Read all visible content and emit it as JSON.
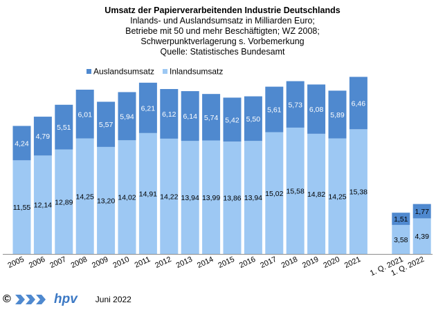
{
  "chart_data": {
    "type": "bar",
    "stacked": true,
    "title": "Umsatz der Papierverarbeitenden Industrie Deutschlands",
    "subtitle_lines": [
      "Inlands- und Auslandsumsatz in Milliarden Euro;",
      "Betriebe mit 50 und mehr Beschäftigten;  WZ 2008;",
      "Schwerpunktverlagerung  s. Vorbemerkung",
      "Quelle: Statistisches Bundesamt"
    ],
    "categories": [
      "2005",
      "2006",
      "2007",
      "2008",
      "2009",
      "2010",
      "2011",
      "2012",
      "2013",
      "2014",
      "2015",
      "2016",
      "2017",
      "2018",
      "2019",
      "2020",
      "2021",
      "1. Q. 2021",
      "1. Q. 2022"
    ],
    "series": [
      {
        "name": "Inlandsumsatz",
        "color": "#9dc8f3",
        "values": [
          11.55,
          12.14,
          12.89,
          14.25,
          13.2,
          14.02,
          14.91,
          14.22,
          13.94,
          13.99,
          13.86,
          13.94,
          15.02,
          15.58,
          14.82,
          14.25,
          15.38,
          3.58,
          4.39
        ],
        "labels": [
          "11,55",
          "12,14",
          "12,89",
          "14,25",
          "13,20",
          "14,02",
          "14,91",
          "14,22",
          "13,94",
          "13,99",
          "13,86",
          "13,94",
          "15,02",
          "15,58",
          "14,82",
          "14,25",
          "15,38",
          "3,58",
          "4,39"
        ]
      },
      {
        "name": "Auslandsumsatz",
        "color": "#4f89cf",
        "values": [
          4.24,
          4.79,
          5.51,
          6.01,
          5.57,
          5.94,
          6.21,
          6.12,
          6.14,
          5.74,
          5.42,
          5.5,
          5.61,
          5.73,
          6.08,
          5.89,
          6.46,
          1.51,
          1.77
        ],
        "labels": [
          "4,24",
          "4,79",
          "5,51",
          "6,01",
          "5,57",
          "5,94",
          "6,21",
          "6,12",
          "6,14",
          "5,74",
          "5,42",
          "5,50",
          "5,61",
          "5,73",
          "6,08",
          "5,89",
          "6,46",
          "1,51",
          "1,77"
        ]
      }
    ],
    "legend_order": [
      "Auslandsumsatz",
      "Inlandsumsatz"
    ],
    "legend_position": "top-left",
    "ylim": [
      0,
      24
    ],
    "grid": false,
    "xlabel": "",
    "ylabel": ""
  },
  "footer": {
    "copyright_symbol": "©",
    "logo_text": "hpv",
    "date": "Juni 2022"
  },
  "colors": {
    "logo_chevrons": "#4f89cf"
  }
}
